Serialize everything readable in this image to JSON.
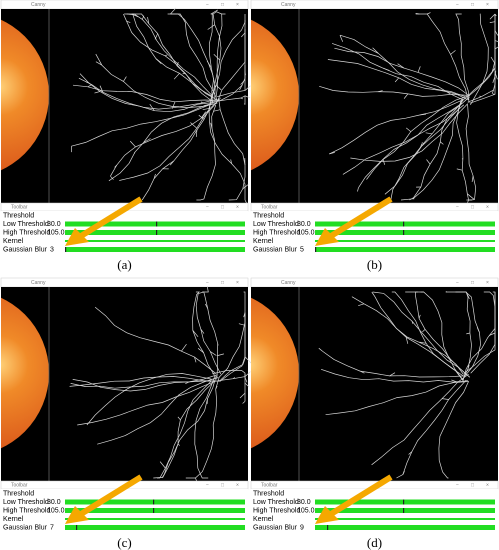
{
  "panels": [
    {
      "image_window": {
        "title": "Canny"
      },
      "toolbar": {
        "title": "Toolbar",
        "rows": [
          {
            "label": "Threshold"
          },
          {
            "label": "Low Threshold",
            "value": "30.0"
          },
          {
            "label": "High Threshold",
            "value": "105.0"
          },
          {
            "label": "Kernel"
          },
          {
            "label": "Gaussian Blur",
            "value": 3
          }
        ]
      },
      "caption": "(a)"
    },
    {
      "image_window": {
        "title": "Canny"
      },
      "toolbar": {
        "title": "Toolbar",
        "rows": [
          {
            "label": "Threshold"
          },
          {
            "label": "Low Threshold",
            "value": "30.0"
          },
          {
            "label": "High Threshold",
            "value": "105.0"
          },
          {
            "label": "Kernel"
          },
          {
            "label": "Gaussian Blur",
            "value": 5
          }
        ]
      },
      "caption": "(b)"
    },
    {
      "image_window": {
        "title": "Canny"
      },
      "toolbar": {
        "title": "Toolbar",
        "rows": [
          {
            "label": "Threshold"
          },
          {
            "label": "Low Threshold",
            "value": "30.0"
          },
          {
            "label": "High Threshold",
            "value": "105.0"
          },
          {
            "label": "Kernel"
          },
          {
            "label": "Gaussian Blur",
            "value": 7
          }
        ]
      },
      "caption": "(c)"
    },
    {
      "image_window": {
        "title": "Canny"
      },
      "toolbar": {
        "title": "Toolbar",
        "rows": [
          {
            "label": "Threshold"
          },
          {
            "label": "Low Threshold",
            "value": "30.0"
          },
          {
            "label": "High Threshold",
            "value": "105.0"
          },
          {
            "label": "Kernel"
          },
          {
            "label": "Gaussian Blur",
            "value": 9
          }
        ]
      },
      "caption": "(d)"
    }
  ]
}
